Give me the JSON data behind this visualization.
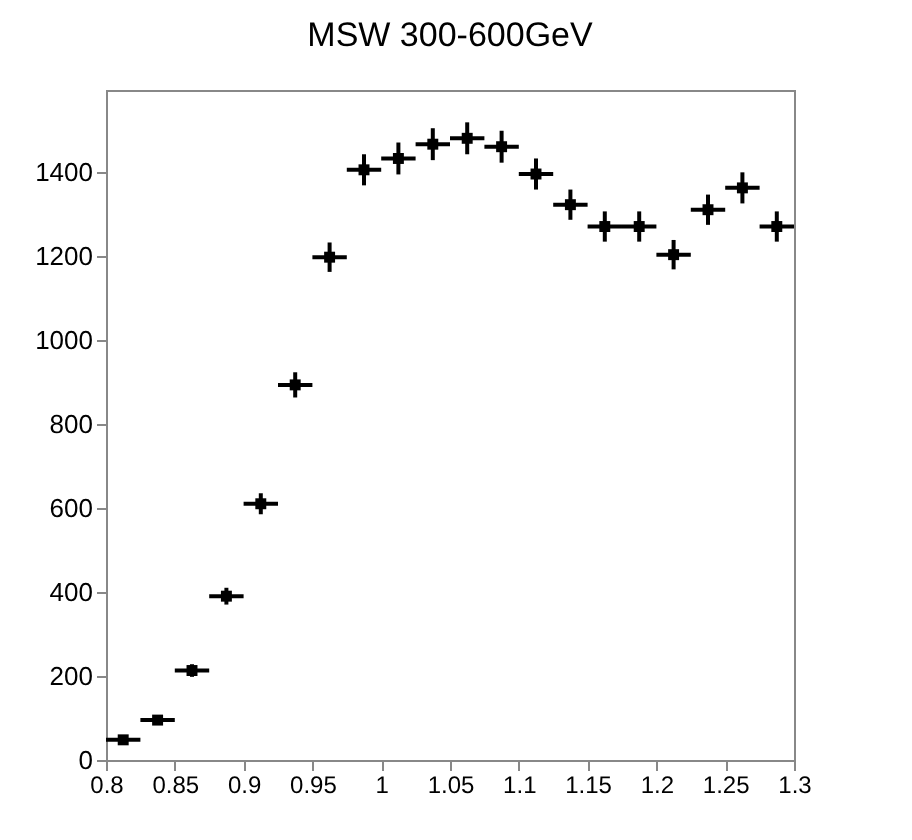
{
  "chart_data": {
    "type": "scatter",
    "title": "MSW 300-600GeV",
    "x": [
      0.8125,
      0.8375,
      0.8625,
      0.8875,
      0.9125,
      0.9375,
      0.9625,
      0.9875,
      1.0125,
      1.0375,
      1.0625,
      1.0875,
      1.1125,
      1.1375,
      1.1625,
      1.1875,
      1.2125,
      1.2375,
      1.2625,
      1.2875
    ],
    "values": [
      48,
      95,
      213,
      390,
      610,
      893,
      1197,
      1405,
      1432,
      1466,
      1480,
      1460,
      1395,
      1322,
      1270,
      1270,
      1203,
      1310,
      1362,
      1270
    ],
    "errors": [
      7,
      10,
      15,
      20,
      25,
      30,
      35,
      37,
      38,
      38,
      38,
      38,
      37,
      36,
      36,
      36,
      35,
      36,
      37,
      36
    ],
    "xerrors": [
      0.0125,
      0.0125,
      0.0125,
      0.0125,
      0.0125,
      0.0125,
      0.0125,
      0.0125,
      0.0125,
      0.0125,
      0.0125,
      0.0125,
      0.0125,
      0.0125,
      0.0125,
      0.0125,
      0.0125,
      0.0125,
      0.0125,
      0.0125
    ],
    "color": "#000000",
    "marker": "square",
    "xlim": [
      0.8,
      1.3
    ],
    "xticks": [
      0.8,
      0.85,
      0.9,
      0.95,
      1,
      1.05,
      1.1,
      1.15,
      1.2,
      1.25,
      1.3
    ],
    "ylim": [
      0,
      1595
    ],
    "yticks": [
      0,
      200,
      400,
      600,
      800,
      1000,
      1200,
      1400
    ]
  }
}
